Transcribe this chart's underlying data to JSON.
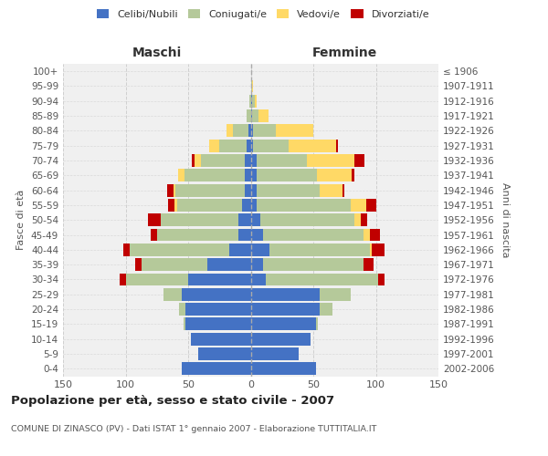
{
  "age_groups": [
    "0-4",
    "5-9",
    "10-14",
    "15-19",
    "20-24",
    "25-29",
    "30-34",
    "35-39",
    "40-44",
    "45-49",
    "50-54",
    "55-59",
    "60-64",
    "65-69",
    "70-74",
    "75-79",
    "80-84",
    "85-89",
    "90-94",
    "95-99",
    "100+"
  ],
  "birth_years": [
    "2002-2006",
    "1997-2001",
    "1992-1996",
    "1987-1991",
    "1982-1986",
    "1977-1981",
    "1972-1976",
    "1967-1971",
    "1962-1966",
    "1957-1961",
    "1952-1956",
    "1947-1951",
    "1942-1946",
    "1937-1941",
    "1932-1936",
    "1927-1931",
    "1922-1926",
    "1917-1921",
    "1912-1916",
    "1907-1911",
    "≤ 1906"
  ],
  "males": {
    "celibi": [
      55,
      42,
      48,
      52,
      52,
      55,
      50,
      35,
      17,
      10,
      10,
      7,
      5,
      5,
      5,
      3,
      2,
      0,
      0,
      0,
      0
    ],
    "coniugati": [
      0,
      0,
      0,
      2,
      5,
      15,
      50,
      52,
      80,
      65,
      62,
      52,
      55,
      48,
      35,
      22,
      12,
      3,
      1,
      0,
      0
    ],
    "vedovi": [
      0,
      0,
      0,
      0,
      0,
      0,
      0,
      0,
      0,
      0,
      0,
      2,
      2,
      5,
      5,
      8,
      5,
      0,
      0,
      0,
      0
    ],
    "divorziati": [
      0,
      0,
      0,
      0,
      0,
      0,
      5,
      5,
      5,
      5,
      10,
      5,
      5,
      0,
      2,
      0,
      0,
      0,
      0,
      0,
      0
    ]
  },
  "females": {
    "nubili": [
      52,
      38,
      48,
      52,
      55,
      55,
      12,
      10,
      15,
      10,
      8,
      5,
      5,
      5,
      5,
      2,
      2,
      1,
      1,
      0,
      0
    ],
    "coniugate": [
      0,
      0,
      0,
      2,
      10,
      25,
      90,
      80,
      80,
      80,
      75,
      75,
      50,
      48,
      40,
      28,
      18,
      5,
      2,
      1,
      0
    ],
    "vedove": [
      0,
      0,
      0,
      0,
      0,
      0,
      0,
      0,
      2,
      5,
      5,
      12,
      18,
      28,
      38,
      38,
      30,
      8,
      2,
      1,
      0
    ],
    "divorziate": [
      0,
      0,
      0,
      0,
      0,
      0,
      5,
      8,
      10,
      8,
      5,
      8,
      2,
      2,
      8,
      2,
      0,
      0,
      0,
      0,
      0
    ]
  },
  "colors": {
    "celibi_nubili": "#4472C4",
    "coniugati": "#B5C99A",
    "vedovi": "#FFD966",
    "divorziati": "#C00000"
  },
  "xlim": 150,
  "title": "Popolazione per età, sesso e stato civile - 2007",
  "subtitle": "COMUNE DI ZINASCO (PV) - Dati ISTAT 1° gennaio 2007 - Elaborazione TUTTITALIA.IT",
  "ylabel_left": "Fasce di età",
  "ylabel_right": "Anni di nascita",
  "xlabel_left": "Maschi",
  "xlabel_right": "Femmine",
  "bg_color": "#f0f0f0",
  "grid_color": "#cccccc"
}
